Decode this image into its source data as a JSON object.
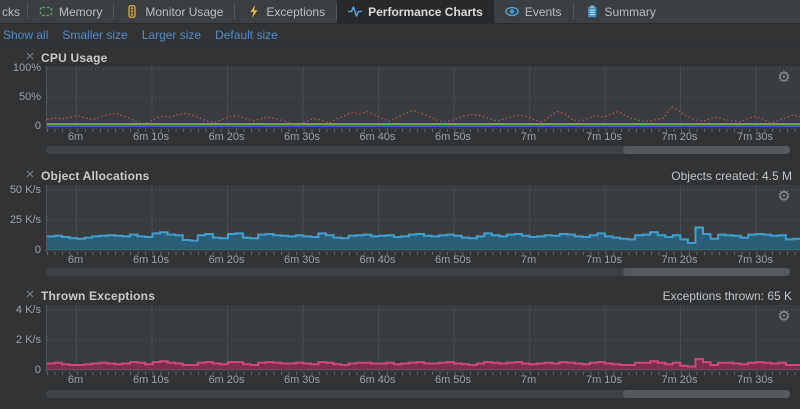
{
  "tabs": {
    "items": [
      {
        "label": "cks",
        "icon": null,
        "selected": false
      },
      {
        "label": "Memory",
        "icon": "memory-icon",
        "selected": false
      },
      {
        "label": "Monitor Usage",
        "icon": "monitor-usage-icon",
        "selected": false
      },
      {
        "label": "Exceptions",
        "icon": "exceptions-icon",
        "selected": false
      },
      {
        "label": "Performance Charts",
        "icon": "performance-charts-icon",
        "selected": true
      },
      {
        "label": "Events",
        "icon": "events-icon",
        "selected": false
      },
      {
        "label": "Summary",
        "icon": "summary-icon",
        "selected": false
      }
    ]
  },
  "toolbar": {
    "links": [
      "Show all",
      "Smaller size",
      "Larger size",
      "Default size"
    ]
  },
  "colors": {
    "link": "#4f8cc9",
    "cpu_line": "#c6524e",
    "cpu_yellow": "#a3a13e",
    "cpu_green": "#57b234",
    "cpu_blue": "#4b53c7",
    "alloc_edge": "#3f9ecf",
    "alloc_fill": "#2b5e76",
    "exc_edge": "#d2487a",
    "exc_fill": "#7c2f4d"
  },
  "chart_data": [
    {
      "type": "line",
      "title": "CPU Usage",
      "stat_right": "",
      "y_ticks": [
        "100%",
        "50%",
        "0"
      ],
      "ylim": [
        0,
        105
      ],
      "ylabel": "CPU %",
      "grid": "on",
      "x_ticks": [
        "6m",
        "6m 10s",
        "6m 20s",
        "6m 30s",
        "6m 40s",
        "6m 50s",
        "7m",
        "7m 10s",
        "7m 20s",
        "7m 30s"
      ],
      "series": [
        {
          "name": "cpu-usage-red-dotted",
          "color": "#c6524e",
          "style": "dotted",
          "values": [
            12,
            15,
            13,
            16,
            19,
            15,
            12,
            16,
            21,
            23,
            18,
            13,
            6,
            5,
            12,
            18,
            16,
            20,
            23,
            20,
            15,
            9,
            7,
            12,
            17,
            19,
            14,
            10,
            13,
            16,
            14,
            10,
            5,
            4,
            8,
            14,
            11,
            6,
            13,
            18,
            25,
            22,
            26,
            20,
            14,
            9,
            16,
            22,
            28,
            24,
            18,
            12,
            8,
            10,
            15,
            19,
            21,
            18,
            14,
            10,
            13,
            17,
            20,
            17,
            12,
            8,
            18,
            26,
            22,
            12,
            9,
            14,
            19,
            16,
            21,
            26,
            19,
            13,
            10,
            9,
            12,
            15,
            35,
            27,
            18,
            12,
            9,
            13,
            16,
            12,
            10,
            8,
            14,
            17,
            13,
            6,
            10,
            15,
            20,
            17
          ]
        },
        {
          "name": "cpu-yellow-line",
          "color": "#a3a13e",
          "style": "solid",
          "constant": 4.2
        },
        {
          "name": "cpu-green-line",
          "color": "#57b234",
          "style": "solid",
          "constant": 2.8
        },
        {
          "name": "cpu-blue-line",
          "color": "#4b53c7",
          "style": "solid",
          "constant": 0.9
        }
      ]
    },
    {
      "type": "bar",
      "title": "Object Allocations",
      "stat_right": "Objects created: 4.5 M",
      "y_ticks": [
        "50 K/s",
        "25 K/s",
        "0"
      ],
      "ylim": [
        0,
        52.5
      ],
      "ylabel": "K/s",
      "grid": "on",
      "x_ticks": [
        "6m",
        "6m 10s",
        "6m 20s",
        "6m 30s",
        "6m 40s",
        "6m 50s",
        "7m",
        "7m 10s",
        "7m 20s",
        "7m 30s"
      ],
      "series": [
        {
          "name": "object-allocations-rate",
          "edge_color": "#3f9ecf",
          "fill_color": "#2b5e76",
          "values": [
            11,
            11.5,
            10.5,
            9.5,
            9,
            10,
            11,
            11.5,
            12,
            11.5,
            11,
            12.5,
            11,
            10.5,
            13.5,
            14.5,
            12.5,
            12,
            8,
            7.5,
            12,
            13,
            10,
            9.5,
            13,
            13.5,
            10,
            9.5,
            12.5,
            13,
            12,
            11.5,
            11,
            12,
            11,
            10.5,
            13.5,
            12,
            10,
            9.5,
            11.5,
            12,
            12.5,
            11,
            11.5,
            12,
            10.5,
            11,
            12.5,
            13,
            11.5,
            11,
            12,
            12.5,
            11.5,
            10,
            9.5,
            11,
            13.5,
            12,
            11,
            12.5,
            13,
            11.5,
            10.5,
            11,
            12,
            11.5,
            13,
            12.5,
            11,
            10.5,
            12,
            13.5,
            11,
            10,
            9,
            8.5,
            12,
            12.5,
            14.5,
            12,
            10.5,
            12,
            8.5,
            5.5,
            18.5,
            13,
            9,
            12.5,
            12,
            11.5,
            10,
            12.5,
            13,
            12.5,
            11.5,
            12,
            8.5,
            9
          ]
        }
      ]
    },
    {
      "type": "bar",
      "title": "Thrown Exceptions",
      "stat_right": "Exceptions thrown: 65 K",
      "y_ticks": [
        "4 K/s",
        "2 K/s",
        "0"
      ],
      "ylim": [
        0,
        4.2
      ],
      "ylabel": "K/s",
      "grid": "on",
      "x_ticks": [
        "6m",
        "6m 10s",
        "6m 20s",
        "6m 30s",
        "6m 40s",
        "6m 50s",
        "7m",
        "7m 10s",
        "7m 20s",
        "7m 30s"
      ],
      "series": [
        {
          "name": "thrown-exceptions-rate",
          "edge_color": "#d2487a",
          "fill_color": "#7c2f4d",
          "values": [
            0.4,
            0.45,
            0.35,
            0.3,
            0.3,
            0.35,
            0.4,
            0.45,
            0.4,
            0.35,
            0.4,
            0.5,
            0.45,
            0.35,
            0.5,
            0.55,
            0.45,
            0.4,
            0.3,
            0.3,
            0.45,
            0.5,
            0.4,
            0.35,
            0.5,
            0.5,
            0.35,
            0.3,
            0.45,
            0.5,
            0.45,
            0.4,
            0.4,
            0.45,
            0.4,
            0.35,
            0.5,
            0.45,
            0.35,
            0.3,
            0.4,
            0.45,
            0.45,
            0.4,
            0.4,
            0.45,
            0.35,
            0.4,
            0.45,
            0.5,
            0.4,
            0.4,
            0.45,
            0.5,
            0.4,
            0.35,
            0.3,
            0.4,
            0.5,
            0.45,
            0.4,
            0.45,
            0.5,
            0.4,
            0.35,
            0.4,
            0.45,
            0.4,
            0.5,
            0.45,
            0.4,
            0.35,
            0.45,
            0.5,
            0.4,
            0.35,
            0.3,
            0.3,
            0.45,
            0.45,
            0.55,
            0.45,
            0.35,
            0.45,
            0.25,
            0.2,
            0.7,
            0.5,
            0.3,
            0.45,
            0.45,
            0.4,
            0.35,
            0.45,
            0.5,
            0.45,
            0.4,
            0.45,
            0.3,
            0.3
          ]
        }
      ]
    }
  ]
}
